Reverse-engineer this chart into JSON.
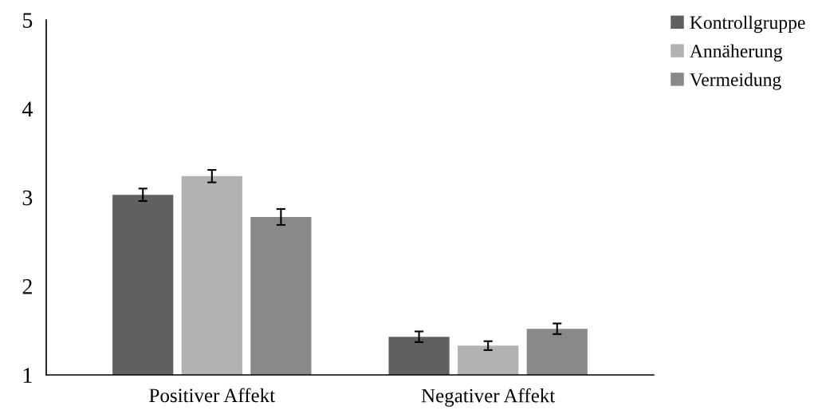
{
  "chart_data": {
    "type": "bar",
    "categories": [
      "Positiver Affekt",
      "Negativer Affekt"
    ],
    "series": [
      {
        "name": "Kontrollgruppe",
        "color": "#606060",
        "values": [
          3.03,
          1.43
        ],
        "errors": [
          0.07,
          0.06
        ]
      },
      {
        "name": "Annäherung",
        "color": "#b2b2b2",
        "values": [
          3.24,
          1.33
        ],
        "errors": [
          0.07,
          0.05
        ]
      },
      {
        "name": "Vermeidung",
        "color": "#898989",
        "values": [
          2.78,
          1.52
        ],
        "errors": [
          0.09,
          0.06
        ]
      }
    ],
    "ylim": [
      1,
      5
    ],
    "yticks": [
      1,
      2,
      3,
      4,
      5
    ],
    "grid": false,
    "legend": "top right"
  }
}
